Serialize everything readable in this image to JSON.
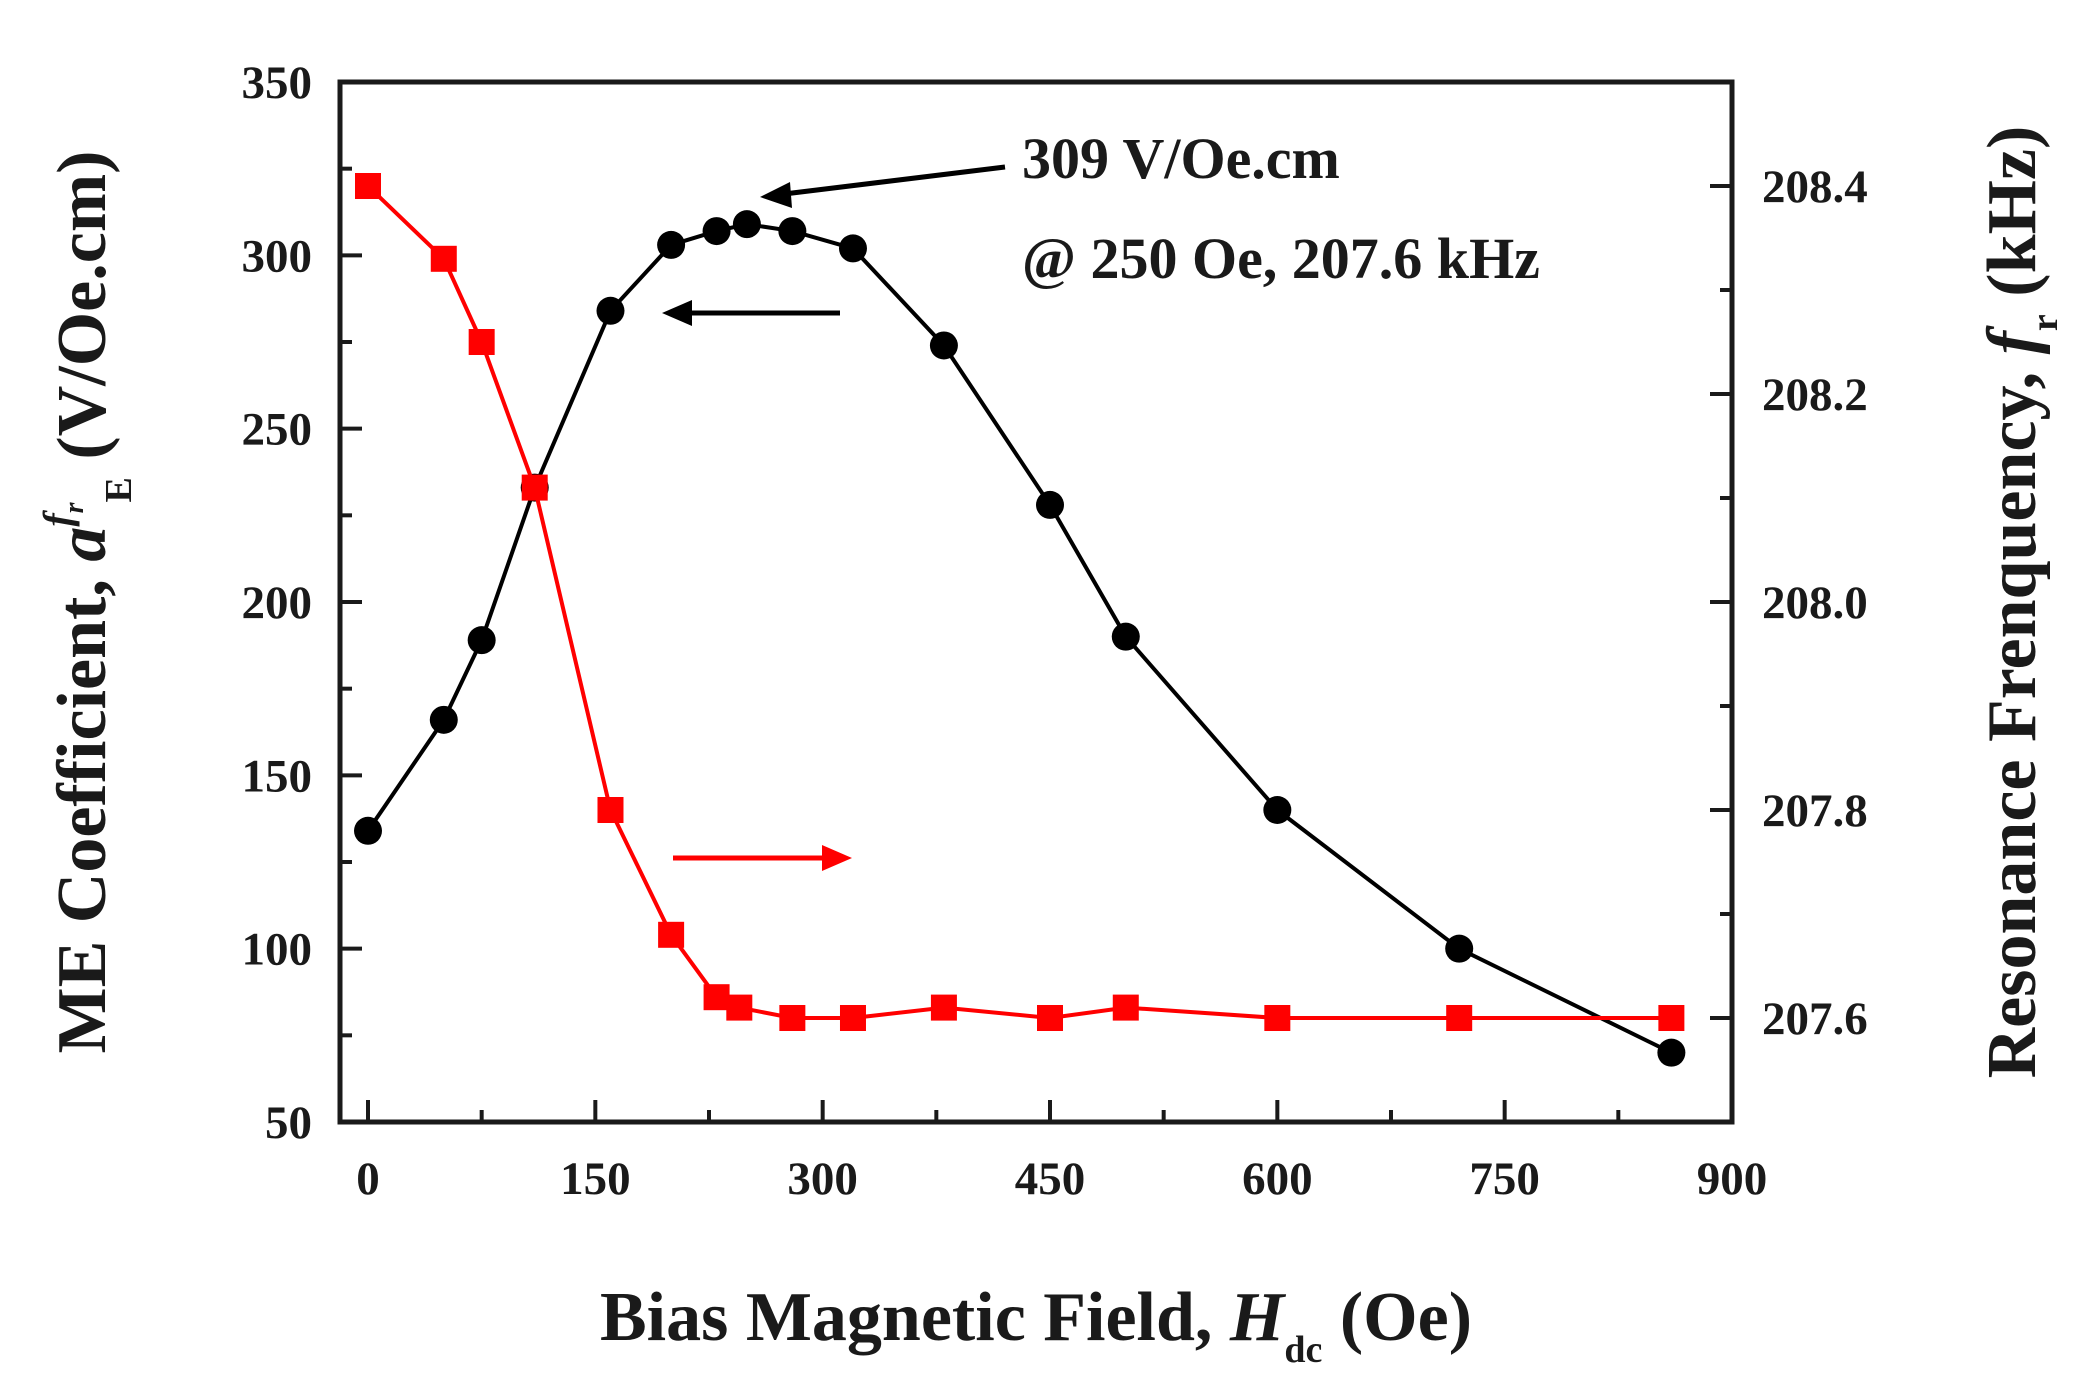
{
  "chart_data": {
    "type": "line",
    "xlabel": {
      "text": "Bias Magnetic Field, ",
      "italic": "H",
      "sub": "dc",
      "suffix": " (Oe)"
    },
    "ylabel_left": {
      "text": "ME Coefficient, ",
      "italic": "a",
      "sup": "f",
      "supsub": "r",
      "sub": "E",
      "suffix": " (V/Oe.cm)"
    },
    "ylabel_right": {
      "text": "Resonance Frenquency, ",
      "italic": "f",
      "sub": "r",
      "suffix": " (kHz)"
    },
    "xlim": [
      -25,
      900
    ],
    "ylim_left": [
      50,
      350
    ],
    "ylim_right": [
      207.5,
      208.5
    ],
    "x_ticks": [
      0,
      150,
      300,
      450,
      600,
      750,
      900
    ],
    "y_ticks_left": [
      50,
      100,
      150,
      200,
      250,
      300,
      350
    ],
    "y_ticks_right": [
      "207.6",
      "207.8",
      "208.0",
      "208.2",
      "208.4"
    ],
    "annotation_lines": [
      "309 V/Oe.cm",
      "@ 250 Oe, 207.6 kHz"
    ],
    "grid": false,
    "colors": {
      "me": "#000000",
      "freq": "#ff0000",
      "axes": "#1a1a1a"
    },
    "series": [
      {
        "axis": "left",
        "marker": "circle",
        "color": "#000000",
        "x": [
          0,
          50,
          75,
          110,
          160,
          200,
          230,
          250,
          280,
          320,
          380,
          450,
          500,
          600,
          720,
          860
        ],
        "y": [
          134,
          166,
          189,
          233,
          284,
          303,
          307,
          309,
          307,
          302,
          274,
          228,
          190,
          140,
          100,
          70
        ]
      },
      {
        "axis": "right",
        "marker": "square",
        "color": "#ff0000",
        "x": [
          0,
          50,
          75,
          110,
          160,
          200,
          230,
          245,
          280,
          320,
          380,
          450,
          500,
          600,
          720,
          860
        ],
        "y": [
          208.4,
          208.33,
          208.25,
          208.11,
          207.8,
          207.68,
          207.62,
          207.61,
          207.6,
          207.6,
          207.61,
          207.6,
          207.61,
          207.6,
          207.6,
          207.6
        ]
      }
    ]
  }
}
